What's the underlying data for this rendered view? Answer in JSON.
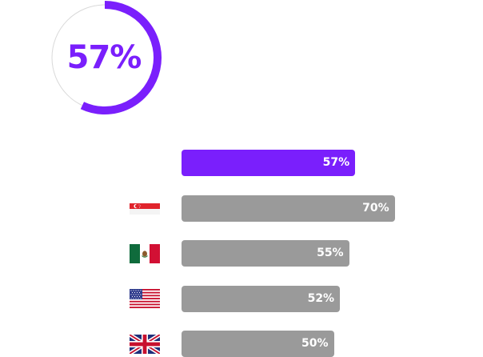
{
  "colors": {
    "accent": "#7a1ffc",
    "bar_default": "#9a9a9a",
    "track": "#d9d9d9"
  },
  "chart_data": [
    {
      "type": "pie",
      "values": [
        57,
        43
      ],
      "center_label": "57%",
      "highlight_color": "#7a1ffc"
    },
    {
      "type": "bar",
      "orientation": "horizontal",
      "categories": [
        "",
        "Singapore flag",
        "Mexico flag",
        "United States flag",
        "United Kingdom flag"
      ],
      "values": [
        57,
        70,
        55,
        52,
        50
      ],
      "value_labels": [
        "57%",
        "70%",
        "55%",
        "52%",
        "50%"
      ],
      "bar_colors": [
        "#7a1ffc",
        "#9a9a9a",
        "#9a9a9a",
        "#9a9a9a",
        "#9a9a9a"
      ],
      "xlim": [
        0,
        100
      ],
      "flag_icons": [
        "",
        "singapore-flag-icon",
        "mexico-flag-icon",
        "usa-flag-icon",
        "uk-flag-icon"
      ]
    }
  ]
}
